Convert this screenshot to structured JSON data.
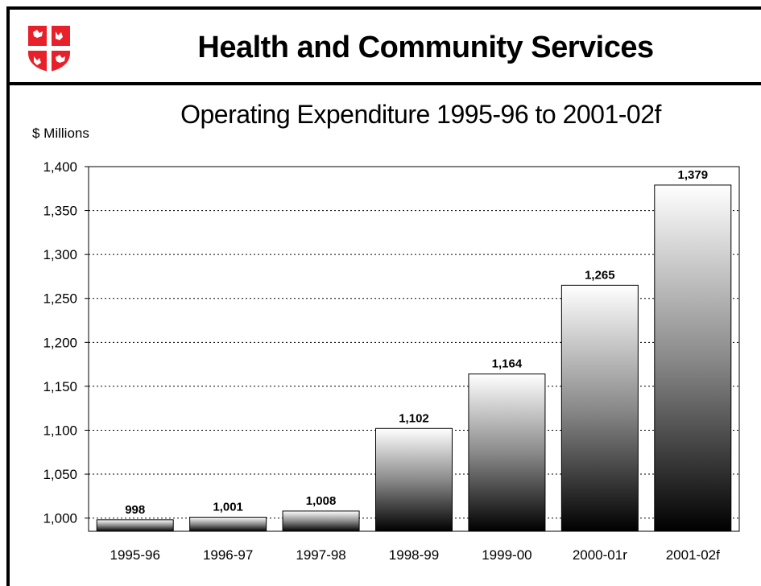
{
  "header": {
    "title": "Health and Community Services",
    "logo_icon": "coat-of-arms-icon",
    "logo_colors": {
      "red": "#e8202a",
      "white": "#ffffff"
    }
  },
  "chart_data": {
    "type": "bar",
    "title": "Operating Expenditure 1995-96 to 2001-02f",
    "xlabel": "",
    "ylabel": "$ Millions",
    "categories": [
      "1995-96",
      "1996-97",
      "1997-98",
      "1998-99",
      "1999-00",
      "2000-01r",
      "2001-02f"
    ],
    "values": [
      998,
      1001,
      1008,
      1102,
      1164,
      1265,
      1379
    ],
    "value_labels": [
      "998",
      "1,001",
      "1,008",
      "1,102",
      "1,164",
      "1,265",
      "1,379"
    ],
    "ylim": [
      985,
      1400
    ],
    "yticks": [
      1000,
      1050,
      1100,
      1150,
      1200,
      1250,
      1300,
      1350,
      1400
    ],
    "ytick_labels": [
      "1,000",
      "1,050",
      "1,100",
      "1,150",
      "1,200",
      "1,250",
      "1,300",
      "1,350",
      "1,400"
    ],
    "grid": true,
    "legend": "none",
    "bar_fill": "vertical gradient white to black"
  }
}
